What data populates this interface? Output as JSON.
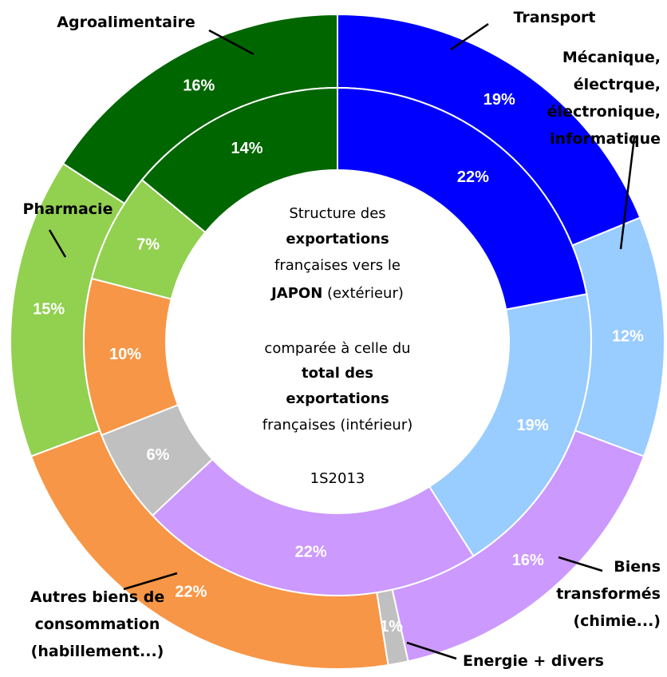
{
  "chart_data": {
    "type": "donut",
    "categories": [
      [
        "Transport"
      ],
      [
        "Mécanique,",
        "électrque,",
        "électronique,",
        "informatique"
      ],
      [
        "Biens",
        "transformés",
        "(chimie...)"
      ],
      [
        "Energie + divers"
      ],
      [
        "Autres biens de",
        "consommation",
        "(habillement...)"
      ],
      [
        "Pharmacie"
      ],
      [
        "Agroalimentaire"
      ]
    ],
    "colors": [
      "#0000ff",
      "#99ccff",
      "#cc99ff",
      "#c0c0c0",
      "#f79646",
      "#92d050",
      "#006600"
    ],
    "series": [
      {
        "ring": "outer",
        "values": [
          19,
          12,
          16,
          1,
          22,
          15,
          16
        ],
        "value_labels": [
          "19%",
          "12%",
          "16%",
          "1%",
          "22%",
          "15%",
          "16%"
        ]
      },
      {
        "ring": "inner",
        "values": [
          22,
          19,
          22,
          6,
          10,
          7,
          14
        ],
        "value_labels": [
          "22%",
          "19%",
          "22%",
          "6%",
          "10%",
          "7%",
          "14%"
        ]
      }
    ],
    "center_lines": [
      [
        {
          "text": "Structure des",
          "bold": false
        }
      ],
      [
        {
          "text": "exportations",
          "bold": true
        }
      ],
      [
        {
          "text": "françaises vers le",
          "bold": false
        }
      ],
      [
        {
          "text": "JAPON",
          "bold": true
        },
        {
          "text": " (extérieur)",
          "bold": false
        }
      ],
      [
        {
          "text": "comparée à celle du",
          "bold": false
        }
      ],
      [
        {
          "text": "total des",
          "bold": true
        }
      ],
      [
        {
          "text": "exportations",
          "bold": true
        }
      ],
      [
        {
          "text": "françaises (intérieur)",
          "bold": false
        }
      ],
      [
        {
          "text": "1S2013",
          "bold": false
        }
      ]
    ]
  }
}
